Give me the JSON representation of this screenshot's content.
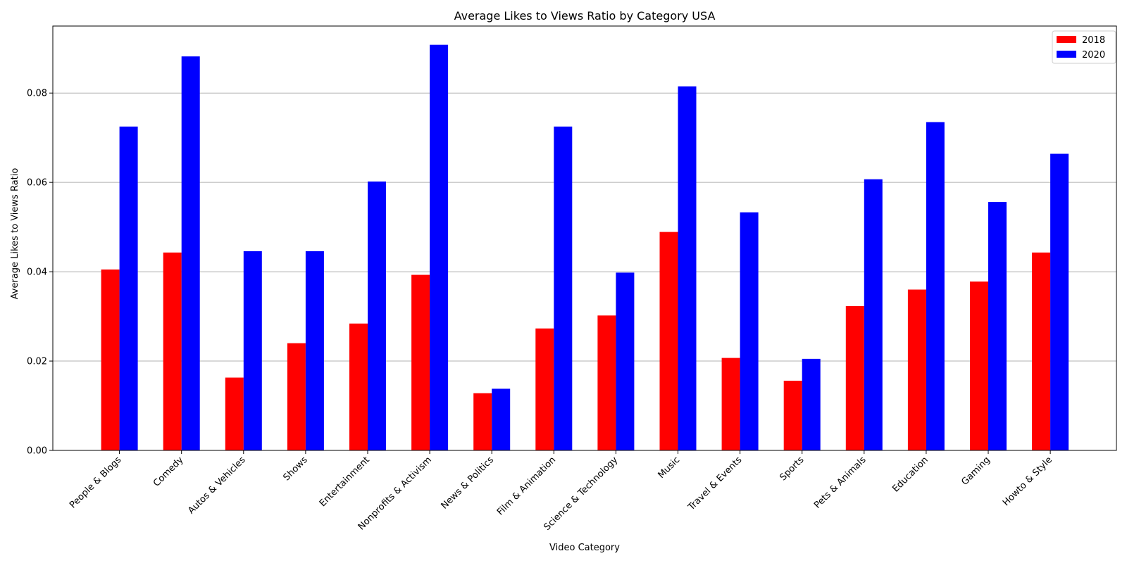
{
  "chart_data": {
    "type": "bar",
    "title": "Average Likes to Views Ratio by Category USA",
    "xlabel": "Video Category",
    "ylabel": "Average Likes to Views Ratio",
    "ylim": [
      0,
      0.095
    ],
    "yticks": [
      0.0,
      0.02,
      0.04,
      0.06,
      0.08
    ],
    "ytick_labels": [
      "0.00",
      "0.02",
      "0.04",
      "0.06",
      "0.08"
    ],
    "grid": "horizontal",
    "legend_position": "top-right",
    "categories": [
      "People & Blogs",
      "Comedy",
      "Autos & Vehicles",
      "Shows",
      "Entertainment",
      "Nonprofits & Activism",
      "News & Politics",
      "Film & Animation",
      "Science & Technology",
      "Music",
      "Travel & Events",
      "Sports",
      "Pets & Animals",
      "Education",
      "Gaming",
      "Howto & Style"
    ],
    "series": [
      {
        "name": "2018",
        "color": "#ff0000",
        "values": [
          0.0405,
          0.0443,
          0.0163,
          0.024,
          0.0284,
          0.0393,
          0.0128,
          0.0273,
          0.0302,
          0.0489,
          0.0207,
          0.0156,
          0.0323,
          0.036,
          0.0378,
          0.0443
        ]
      },
      {
        "name": "2020",
        "color": "#0000ff",
        "values": [
          0.0725,
          0.0882,
          0.0446,
          0.0446,
          0.0602,
          0.0908,
          0.0138,
          0.0725,
          0.0398,
          0.0815,
          0.0533,
          0.0205,
          0.0607,
          0.0735,
          0.0556,
          0.0664
        ]
      }
    ]
  }
}
